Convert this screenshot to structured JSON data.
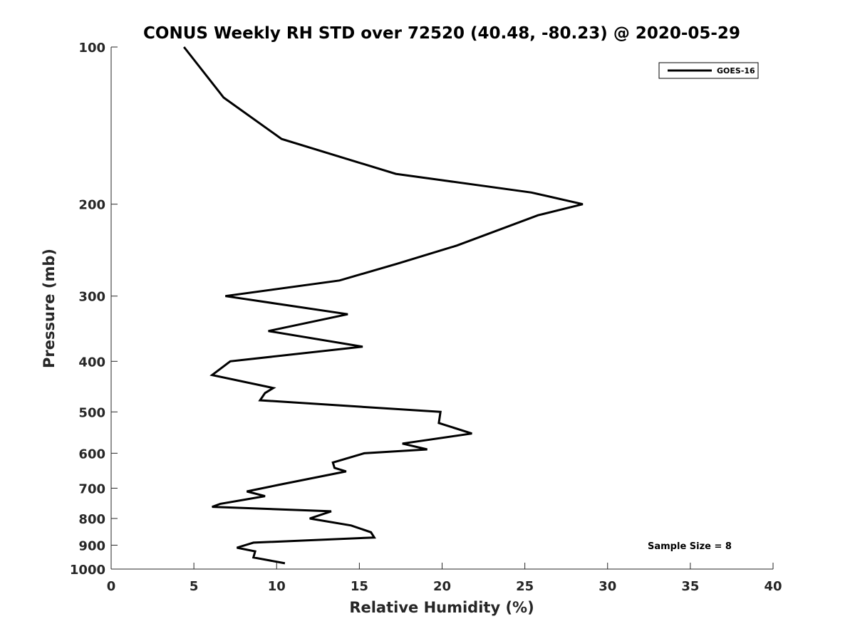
{
  "chart_data": {
    "type": "line",
    "title": "CONUS Weekly RH STD over 72520 (40.48, -80.23) @ 2020-05-29",
    "xlabel": "Relative Humidity (%)",
    "ylabel": "Pressure (mb)",
    "xlim": [
      0,
      40
    ],
    "ylim": [
      1000,
      100
    ],
    "yscale": "log",
    "y_reversed": true,
    "xticks": [
      0,
      5,
      10,
      15,
      20,
      25,
      30,
      35,
      40
    ],
    "yticks": [
      100,
      200,
      300,
      400,
      500,
      600,
      700,
      800,
      900,
      1000
    ],
    "grid": false,
    "legend_position": "top-right",
    "series": [
      {
        "name": "GOES-16",
        "color": "#000000",
        "points": [
          [
            4.4,
            100
          ],
          [
            6.8,
            125
          ],
          [
            10.3,
            150
          ],
          [
            17.2,
            175
          ],
          [
            25.4,
            190
          ],
          [
            28.5,
            200
          ],
          [
            25.8,
            210
          ],
          [
            20.9,
            240
          ],
          [
            17.3,
            260
          ],
          [
            13.8,
            280
          ],
          [
            6.9,
            300
          ],
          [
            14.3,
            325
          ],
          [
            9.5,
            350
          ],
          [
            15.2,
            375
          ],
          [
            7.2,
            400
          ],
          [
            6.1,
            425
          ],
          [
            9.8,
            450
          ],
          [
            9.3,
            460
          ],
          [
            9.0,
            475
          ],
          [
            19.9,
            500
          ],
          [
            19.8,
            525
          ],
          [
            21.8,
            550
          ],
          [
            17.6,
            575
          ],
          [
            19.1,
            590
          ],
          [
            15.3,
            600
          ],
          [
            13.4,
            625
          ],
          [
            13.5,
            640
          ],
          [
            14.2,
            650
          ],
          [
            10.1,
            690
          ],
          [
            8.2,
            710
          ],
          [
            9.3,
            725
          ],
          [
            6.6,
            750
          ],
          [
            6.1,
            760
          ],
          [
            13.3,
            775
          ],
          [
            12.0,
            800
          ],
          [
            14.5,
            825
          ],
          [
            15.7,
            850
          ],
          [
            15.9,
            870
          ],
          [
            8.6,
            890
          ],
          [
            7.6,
            910
          ],
          [
            8.7,
            925
          ],
          [
            8.6,
            950
          ],
          [
            10.5,
            975
          ]
        ]
      }
    ],
    "annotation": "Sample Size = 8"
  }
}
